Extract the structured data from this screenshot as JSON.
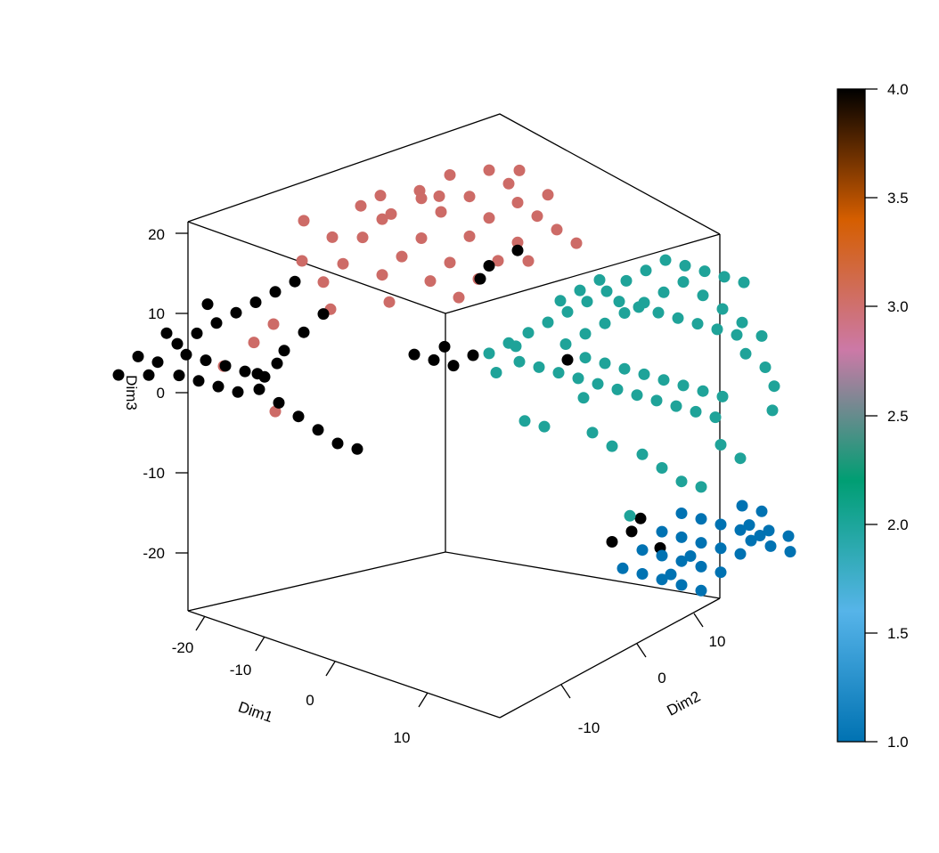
{
  "chart_data": {
    "type": "scatter",
    "xlabel": "Dim1",
    "ylabel": "Dim2",
    "zlabel": "Dim3",
    "dim1_ticks": [
      "-20",
      "-10",
      "0",
      "10"
    ],
    "dim2_ticks": [
      "-10",
      "0",
      "10"
    ],
    "dim3_ticks": [
      "20",
      "10",
      "0",
      "-10",
      "-20"
    ],
    "colorbar": {
      "min": 1.0,
      "max": 4.0,
      "tick_labels": [
        "4.0",
        "3.5",
        "3.0",
        "2.5",
        "2.0",
        "1.5",
        "1.0"
      ],
      "colors": [
        "#0072B2",
        "#56B4E9",
        "#009E73",
        "#CC79A7",
        "#D55E00",
        "#000000"
      ]
    },
    "series": [
      {
        "value": 3,
        "color": "#CD6B67",
        "points": [
          [
            -5,
            6,
            21
          ],
          [
            -3,
            8,
            21
          ],
          [
            -2,
            10,
            22
          ],
          [
            0,
            12,
            22
          ],
          [
            1,
            14,
            21
          ],
          [
            -4,
            9,
            19
          ],
          [
            -1,
            11,
            19
          ],
          [
            2,
            13,
            18
          ],
          [
            -6,
            7,
            17
          ],
          [
            -3,
            10,
            17
          ],
          [
            0,
            12,
            16
          ],
          [
            3,
            14,
            16
          ],
          [
            -7,
            6,
            15
          ],
          [
            -4,
            9,
            14
          ],
          [
            -1,
            11,
            14
          ],
          [
            2,
            13,
            13
          ],
          [
            -8,
            5,
            12
          ],
          [
            -5,
            8,
            12
          ],
          [
            -2,
            10,
            11
          ],
          [
            1,
            12,
            11
          ],
          [
            -9,
            4,
            10
          ],
          [
            -6,
            7,
            10
          ],
          [
            -3,
            9,
            9
          ],
          [
            0,
            11,
            9
          ],
          [
            -4,
            6,
            8
          ],
          [
            -1,
            10,
            7
          ],
          [
            -10,
            3,
            18
          ],
          [
            -8,
            4,
            16
          ],
          [
            4,
            15,
            14
          ],
          [
            5,
            16,
            12
          ],
          [
            2,
            14,
            10
          ],
          [
            -6,
            5,
            20
          ],
          [
            -2,
            9,
            20
          ],
          [
            1,
            13,
            20
          ],
          [
            3,
            15,
            18
          ],
          [
            -9,
            2,
            14
          ],
          [
            -7,
            3,
            8
          ],
          [
            -11,
            1,
            6
          ],
          [
            -12,
            0,
            4
          ],
          [
            -13,
            -2,
            2
          ],
          [
            -12,
            2,
            -6
          ],
          [
            -5,
            7,
            18
          ]
        ]
      },
      {
        "value": 4,
        "color": "#000000",
        "points": [
          [
            -20,
            -6,
            1
          ],
          [
            -19,
            -5,
            3
          ],
          [
            -18,
            -4,
            2
          ],
          [
            -17,
            -3,
            4
          ],
          [
            -16,
            -2,
            5
          ],
          [
            -15,
            -1,
            6
          ],
          [
            -14,
            0,
            7
          ],
          [
            -13,
            1,
            8
          ],
          [
            -12,
            2,
            9
          ],
          [
            -11,
            3,
            10
          ],
          [
            -18,
            -2,
            -1
          ],
          [
            -17,
            -1,
            -2
          ],
          [
            -16,
            0,
            -3
          ],
          [
            -15,
            1,
            -4
          ],
          [
            -14,
            2,
            -2
          ],
          [
            -13,
            3,
            -1
          ],
          [
            -16,
            -3,
            3
          ],
          [
            -15,
            -2,
            2
          ],
          [
            -14,
            -1,
            1
          ],
          [
            -13,
            0,
            0
          ],
          [
            -12,
            1,
            -1
          ],
          [
            -11,
            2,
            2
          ],
          [
            -10,
            3,
            4
          ],
          [
            -9,
            4,
            6
          ],
          [
            -15,
            3,
            -5
          ],
          [
            -14,
            4,
            -7
          ],
          [
            -13,
            5,
            -9
          ],
          [
            -12,
            6,
            -11
          ],
          [
            -11,
            7,
            -13
          ],
          [
            -10,
            8,
            -14
          ],
          [
            -6,
            10,
            -2
          ],
          [
            -5,
            11,
            -3
          ],
          [
            -4,
            12,
            -4
          ],
          [
            -5,
            12,
            -2
          ],
          [
            -3,
            13,
            -3
          ],
          [
            -1,
            12,
            8
          ],
          [
            0,
            12,
            10
          ],
          [
            2,
            13,
            12
          ],
          [
            4,
            16,
            -3
          ],
          [
            9,
            16,
            -24
          ],
          [
            10,
            17,
            -23
          ],
          [
            11,
            17,
            -21
          ],
          [
            12,
            18,
            -25
          ],
          [
            -19,
            -4,
            0
          ],
          [
            -17,
            -4,
            6
          ],
          [
            -16,
            -1,
            8
          ]
        ]
      },
      {
        "value": 2,
        "color": "#1FA399",
        "points": [
          [
            0,
            12,
            -1
          ],
          [
            1,
            13,
            0
          ],
          [
            2,
            14,
            1
          ],
          [
            3,
            15,
            2
          ],
          [
            4,
            16,
            3
          ],
          [
            5,
            17,
            4
          ],
          [
            6,
            18,
            5
          ],
          [
            7,
            19,
            6
          ],
          [
            8,
            20,
            7
          ],
          [
            9,
            21,
            8
          ],
          [
            10,
            22,
            7
          ],
          [
            11,
            23,
            6
          ],
          [
            12,
            24,
            5
          ],
          [
            13,
            25,
            4
          ],
          [
            1,
            14,
            -3
          ],
          [
            2,
            15,
            -4
          ],
          [
            3,
            16,
            -5
          ],
          [
            4,
            17,
            -6
          ],
          [
            5,
            18,
            -7
          ],
          [
            6,
            19,
            -8
          ],
          [
            7,
            20,
            -9
          ],
          [
            8,
            21,
            -10
          ],
          [
            9,
            22,
            -11
          ],
          [
            10,
            23,
            -12
          ],
          [
            11,
            24,
            -13
          ],
          [
            2,
            17,
            3
          ],
          [
            3,
            18,
            4
          ],
          [
            4,
            19,
            5
          ],
          [
            5,
            20,
            2
          ],
          [
            6,
            21,
            1
          ],
          [
            7,
            22,
            0
          ],
          [
            8,
            23,
            -1
          ],
          [
            9,
            24,
            -2
          ],
          [
            10,
            25,
            -3
          ],
          [
            11,
            26,
            -4
          ],
          [
            12,
            26,
            -6
          ],
          [
            13,
            27,
            -8
          ],
          [
            14,
            27,
            -10
          ],
          [
            15,
            26,
            -12
          ],
          [
            6,
            16,
            -2
          ],
          [
            7,
            17,
            -3
          ],
          [
            8,
            18,
            -4
          ],
          [
            9,
            19,
            -5
          ],
          [
            10,
            20,
            -6
          ],
          [
            11,
            21,
            -7
          ],
          [
            12,
            22,
            -8
          ],
          [
            13,
            23,
            -9
          ],
          [
            5,
            15,
            0
          ],
          [
            6,
            16,
            1
          ],
          [
            7,
            17,
            2
          ],
          [
            8,
            18,
            3
          ],
          [
            9,
            19,
            4
          ],
          [
            10,
            20,
            5
          ],
          [
            11,
            21,
            6
          ],
          [
            12,
            22,
            4
          ],
          [
            13,
            23,
            2
          ],
          [
            14,
            24,
            0
          ],
          [
            15,
            25,
            -2
          ],
          [
            10,
            18,
            -14
          ],
          [
            11,
            19,
            -16
          ],
          [
            12,
            20,
            -18
          ],
          [
            13,
            21,
            -19
          ],
          [
            8,
            15,
            -10
          ],
          [
            9,
            16,
            -12
          ],
          [
            4,
            12,
            -8
          ],
          [
            5,
            13,
            -9
          ],
          [
            3,
            12,
            1
          ],
          [
            2,
            11,
            -2
          ],
          [
            14,
            22,
            -14
          ],
          [
            15,
            23,
            -16
          ],
          [
            7,
            15,
            -6
          ],
          [
            11,
            16,
            -20
          ]
        ]
      },
      {
        "value": 1,
        "color": "#0072B2",
        "points": [
          [
            12,
            20,
            -22
          ],
          [
            13,
            21,
            -23
          ],
          [
            14,
            22,
            -24
          ],
          [
            15,
            23,
            -25
          ],
          [
            16,
            24,
            -26
          ],
          [
            11,
            19,
            -24
          ],
          [
            12,
            20,
            -25
          ],
          [
            13,
            21,
            -26
          ],
          [
            14,
            22,
            -27
          ],
          [
            15,
            23,
            -28
          ],
          [
            10,
            18,
            -26
          ],
          [
            11,
            19,
            -27
          ],
          [
            12,
            20,
            -28
          ],
          [
            13,
            21,
            -29
          ],
          [
            14,
            22,
            -30
          ],
          [
            15,
            24,
            -27
          ],
          [
            16,
            25,
            -28
          ],
          [
            17,
            26,
            -29
          ],
          [
            9,
            17,
            -28
          ],
          [
            10,
            18,
            -29
          ],
          [
            11,
            19,
            -30
          ],
          [
            12,
            20,
            -31
          ],
          [
            13,
            21,
            -32
          ],
          [
            16,
            23,
            -24
          ],
          [
            17,
            24,
            -25
          ],
          [
            18,
            25,
            -26
          ],
          [
            14,
            24,
            -23
          ],
          [
            15,
            25,
            -24
          ],
          [
            13,
            20,
            -27
          ],
          [
            12,
            19,
            -29
          ]
        ]
      }
    ]
  }
}
